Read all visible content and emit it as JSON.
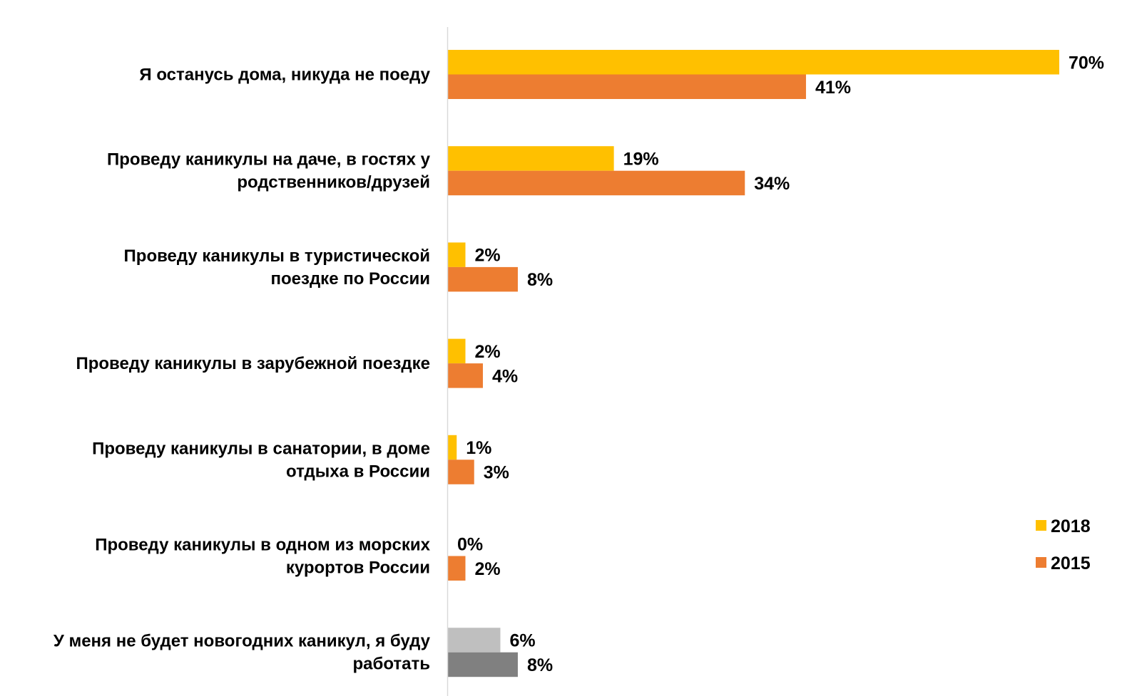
{
  "chart_data": {
    "type": "bar",
    "orientation": "horizontal",
    "categories": [
      [
        "Я останусь дома, никуда не поеду"
      ],
      [
        "Проведу каникулы на даче, в гостях у",
        "родственников/друзей"
      ],
      [
        "Проведу каникулы в туристической",
        "поездке по России"
      ],
      [
        "Проведу каникулы в зарубежной поездке"
      ],
      [
        "Проведу каникулы в санатории, в доме",
        "отдыха в России"
      ],
      [
        "Проведу каникулы в одном из морских",
        "курортов России"
      ],
      [
        "У меня не будет новогодних каникул, я буду",
        "работать"
      ]
    ],
    "series": [
      {
        "name": "2018",
        "color": "#FFC000",
        "values": [
          70,
          19,
          2,
          2,
          1,
          0,
          6
        ],
        "labels": [
          "70%",
          "19%",
          "2%",
          "2%",
          "1%",
          "0%",
          "6%"
        ],
        "override_colors": {
          "6": "#BFBFBF"
        }
      },
      {
        "name": "2015",
        "color": "#ED7D31",
        "values": [
          41,
          34,
          8,
          4,
          3,
          2,
          8
        ],
        "labels": [
          "41%",
          "34%",
          "8%",
          "4%",
          "3%",
          "2%",
          "8%"
        ],
        "override_colors": {
          "6": "#808080"
        }
      }
    ],
    "xlim": [
      0,
      70
    ],
    "grid": false,
    "legend_position": "right"
  }
}
